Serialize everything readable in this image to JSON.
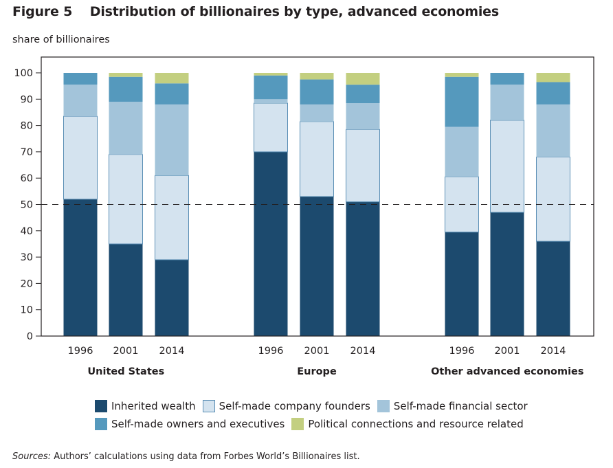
{
  "figure": {
    "number_label": "Figure 5",
    "title": "Distribution of billionaires by type, advanced economies",
    "source_prefix": "Sources:",
    "source_text": " Authors’ calculations using data from Forbes World’s Billionaires list."
  },
  "chart_data": {
    "type": "bar",
    "stacked": true,
    "title": "Distribution of billionaires by type, advanced economies",
    "ylabel": "share of billionaires",
    "xlabel": "",
    "ylim": [
      0,
      100
    ],
    "yticks": [
      0,
      10,
      20,
      30,
      40,
      50,
      60,
      70,
      80,
      90,
      100
    ],
    "reference_line": {
      "y": 50,
      "style": "dashed"
    },
    "groups": [
      "United States",
      "Europe",
      "Other advanced economies"
    ],
    "categories": [
      "1996",
      "2001",
      "2014",
      "1996",
      "2001",
      "2014",
      "1996",
      "2001",
      "2014"
    ],
    "group_of_category": [
      0,
      0,
      0,
      1,
      1,
      1,
      2,
      2,
      2
    ],
    "series": [
      {
        "name": "Inherited wealth",
        "color": "#1c4a6e",
        "values": [
          52,
          35,
          29,
          70,
          53,
          51,
          39.5,
          47,
          36
        ]
      },
      {
        "name": "Self-made company founders",
        "color": "#d4e3ef",
        "values": [
          31.5,
          34,
          32,
          18.5,
          28.5,
          27.5,
          21,
          35,
          32
        ]
      },
      {
        "name": "Self-made financial sector",
        "color": "#a3c4da",
        "values": [
          12,
          20,
          27,
          1.5,
          6.5,
          10,
          19,
          13.5,
          20
        ]
      },
      {
        "name": "Self-made owners and executives",
        "color": "#5599bd",
        "values": [
          4.5,
          9.5,
          8,
          9,
          9.5,
          7,
          19,
          4.5,
          8.5
        ]
      },
      {
        "name": "Political connections and resource related",
        "color": "#c3cf80",
        "values": [
          0,
          1.5,
          4,
          1,
          2.5,
          4.5,
          1.5,
          0,
          3.5
        ]
      }
    ],
    "legend_position": "bottom",
    "grid": false
  }
}
